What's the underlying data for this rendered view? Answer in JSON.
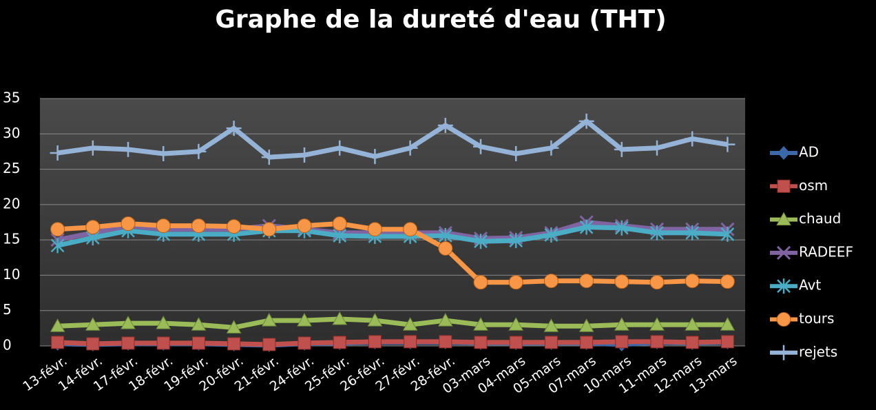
{
  "chart_data": {
    "type": "line",
    "title": "Graphe de la dureté d'eau (THT)",
    "categories": [
      "13-févr.",
      "14-févr.",
      "17-févr.",
      "18-févr.",
      "19-févr.",
      "20-févr.",
      "21-févr.",
      "24-févr.",
      "25-févr.",
      "26-févr.",
      "27-févr.",
      "28-févr.",
      "03-mars",
      "04-mars",
      "05-mars",
      "07-mars",
      "10-mars",
      "11-mars",
      "12-mars",
      "13-mars"
    ],
    "series": [
      {
        "name": "AD",
        "color": "#3b68a8",
        "marker": "diamond",
        "values": [
          0.3,
          0.2,
          0.3,
          0.3,
          0.3,
          0.2,
          0.1,
          0.3,
          0.4,
          0.5,
          0.5,
          0.5,
          0.4,
          0.4,
          0.4,
          0.4,
          0.2,
          0.5,
          0.4,
          0.5
        ]
      },
      {
        "name": "osm",
        "color": "#c0504d",
        "marker": "square",
        "values": [
          0.5,
          0.3,
          0.4,
          0.4,
          0.4,
          0.3,
          0.2,
          0.4,
          0.5,
          0.6,
          0.6,
          0.6,
          0.5,
          0.5,
          0.5,
          0.5,
          0.6,
          0.6,
          0.5,
          0.6
        ]
      },
      {
        "name": "chaud",
        "color": "#9bbb59",
        "marker": "triangle",
        "values": [
          2.8,
          3,
          3.2,
          3.2,
          3,
          2.6,
          3.6,
          3.6,
          3.8,
          3.6,
          3,
          3.6,
          3,
          3,
          2.8,
          2.8,
          3,
          3,
          3,
          3
        ]
      },
      {
        "name": "RADEEF",
        "color": "#8064a2",
        "marker": "x",
        "values": [
          15,
          16,
          17,
          16.5,
          16.5,
          16.5,
          17,
          16.5,
          16,
          16,
          16,
          16,
          15.2,
          15.3,
          16,
          17.5,
          17,
          16.5,
          16.5,
          16.5
        ]
      },
      {
        "name": "Avt",
        "color": "#4bacc6",
        "marker": "star",
        "values": [
          14.2,
          15.3,
          16.3,
          15.8,
          15.8,
          15.8,
          16.3,
          16.3,
          15.6,
          15.5,
          15.5,
          15.6,
          14.8,
          14.9,
          15.7,
          16.8,
          16.7,
          16,
          16,
          15.8
        ]
      },
      {
        "name": "tours",
        "color": "#f79646",
        "marker": "circle",
        "values": [
          16.5,
          16.8,
          17.3,
          17,
          17,
          16.9,
          16.5,
          17,
          17.3,
          16.5,
          16.5,
          13.8,
          9,
          9,
          9.2,
          9.2,
          9.1,
          9,
          9.2,
          9.1
        ]
      },
      {
        "name": "rejets",
        "color": "#95b3d7",
        "marker": "plus",
        "values": [
          27.3,
          28,
          27.8,
          27.2,
          27.5,
          30.8,
          26.7,
          27,
          28,
          26.8,
          28,
          31.2,
          28.2,
          27.2,
          28,
          31.8,
          27.8,
          28,
          29.3,
          28.5
        ]
      }
    ],
    "ylim": [
      0,
      35
    ],
    "yticks": [
      0,
      5,
      10,
      15,
      20,
      25,
      30,
      35
    ],
    "grid": true,
    "legend": "right"
  }
}
